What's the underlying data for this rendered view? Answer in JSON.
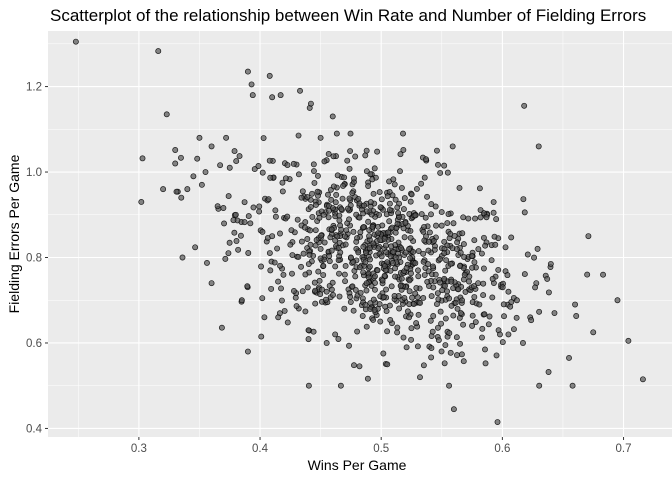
{
  "chart_data": {
    "type": "scatter",
    "title": "Scatterplot of the relationship between Win Rate and Number of Fielding Errors",
    "xlabel": "Wins Per Game",
    "ylabel": "Fielding Errors Per Game",
    "xlim": [
      0.225,
      0.74
    ],
    "ylim": [
      0.38,
      1.33
    ],
    "xticks": [
      "0.3",
      "0.4",
      "0.5",
      "0.6",
      "0.7"
    ],
    "yticks": [
      "0.4",
      "0.6",
      "0.8",
      "1.0",
      "1.2"
    ],
    "grid": true,
    "colors": {
      "panel": "#ebebeb",
      "grid_major": "#ffffff",
      "point_fill": "#555555",
      "point_stroke": "#000000"
    },
    "points": {
      "x": [
        0.248,
        0.316,
        0.323,
        0.303,
        0.302,
        0.34,
        0.35,
        0.355,
        0.36,
        0.372,
        0.375,
        0.39,
        0.394,
        0.393,
        0.408,
        0.41,
        0.417,
        0.433,
        0.441,
        0.442,
        0.46,
        0.488,
        0.518,
        0.537,
        0.546,
        0.559,
        0.618,
        0.63,
        0.32,
        0.33,
        0.335,
        0.345,
        0.352,
        0.365,
        0.38,
        0.392,
        0.402,
        0.41,
        0.425,
        0.437,
        0.45,
        0.462,
        0.475,
        0.49,
        0.503,
        0.512,
        0.523,
        0.535,
        0.545,
        0.552,
        0.565,
        0.58,
        0.592,
        0.605,
        0.612,
        0.628,
        0.336,
        0.36,
        0.385,
        0.39,
        0.401,
        0.415,
        0.44,
        0.455,
        0.462,
        0.505,
        0.532,
        0.556,
        0.56,
        0.596,
        0.598,
        0.655,
        0.67,
        0.675,
        0.695,
        0.704,
        0.716,
        0.64,
        0.627,
        0.563,
        0.581,
        0.455,
        0.488,
        0.47,
        0.497,
        0.552,
        0.543,
        0.511,
        0.523,
        0.575,
        0.605,
        0.617,
        0.643,
        0.66,
        0.671
      ],
      "y": [
        1.305,
        1.283,
        1.135,
        1.032,
        0.93,
        0.96,
        1.08,
        1.0,
        1.06,
        1.08,
        1.01,
        1.235,
        1.18,
        1.205,
        1.225,
        1.175,
        1.18,
        1.19,
        1.15,
        1.16,
        1.13,
        1.05,
        1.09,
        1.03,
        1.05,
        1.06,
        1.155,
        1.06,
        0.96,
        1.02,
        0.94,
        0.99,
        0.97,
        0.92,
        0.9,
        0.88,
        0.86,
        0.85,
        0.83,
        0.87,
        0.82,
        0.84,
        0.8,
        0.85,
        0.78,
        0.8,
        0.82,
        0.79,
        0.76,
        0.81,
        0.78,
        0.74,
        0.75,
        0.72,
        0.7,
        0.74,
        0.8,
        0.74,
        0.7,
        0.58,
        0.615,
        0.66,
        0.63,
        0.6,
        0.62,
        0.55,
        0.52,
        0.5,
        0.445,
        0.415,
        0.62,
        0.565,
        0.76,
        0.625,
        0.7,
        0.605,
        0.515,
        0.785,
        0.73,
        0.68,
        0.69,
        0.72,
        0.74,
        0.76,
        0.77,
        0.75,
        0.73,
        0.71,
        0.66,
        0.64,
        0.62,
        0.6,
        0.67,
        0.69,
        0.85
      ]
    }
  }
}
